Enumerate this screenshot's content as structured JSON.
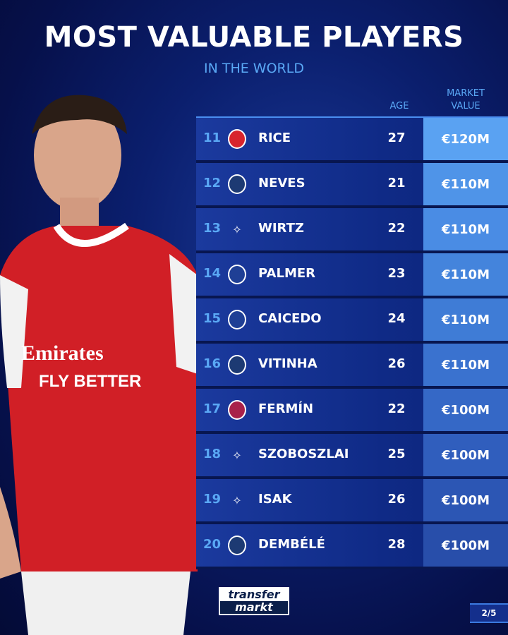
{
  "title": "MOST VALUABLE PLAYERS",
  "subtitle": "IN THE WORLD",
  "headers": {
    "age": "AGE",
    "market_value_1": "MARKET",
    "market_value_2": "VALUE"
  },
  "rows": [
    {
      "rank": "11",
      "club": "Arsenal",
      "name": "RICE",
      "age": "27",
      "value": "€120M",
      "value_color": "#5aa2f2"
    },
    {
      "rank": "12",
      "club": "PSG",
      "name": "NEVES",
      "age": "21",
      "value": "€110M",
      "value_color": "#4f94e8"
    },
    {
      "rank": "13",
      "club": "Liverpool",
      "name": "WIRTZ",
      "age": "22",
      "value": "€110M",
      "value_color": "#4a8ce4"
    },
    {
      "rank": "14",
      "club": "Chelsea",
      "name": "PALMER",
      "age": "23",
      "value": "€110M",
      "value_color": "#4484dc"
    },
    {
      "rank": "15",
      "club": "Chelsea",
      "name": "CAICEDO",
      "age": "24",
      "value": "€110M",
      "value_color": "#3f7cd6"
    },
    {
      "rank": "16",
      "club": "PSG",
      "name": "VITINHA",
      "age": "26",
      "value": "€110M",
      "value_color": "#3a72cf"
    },
    {
      "rank": "17",
      "club": "Barcelona",
      "name": "FERMÍN",
      "age": "22",
      "value": "€100M",
      "value_color": "#3568c6"
    },
    {
      "rank": "18",
      "club": "Liverpool",
      "name": "SZOBOSZLAI",
      "age": "25",
      "value": "€100M",
      "value_color": "#305ebd"
    },
    {
      "rank": "19",
      "club": "Liverpool",
      "name": "ISAK",
      "age": "26",
      "value": "€100M",
      "value_color": "#2c56b4"
    },
    {
      "rank": "20",
      "club": "PSG",
      "name": "DEMBÉLÉ",
      "age": "28",
      "value": "€100M",
      "value_color": "#284eaa"
    }
  ],
  "club_colors": {
    "Arsenal": "#d8242c",
    "PSG": "#1d3a73",
    "Liverpool": "transparent",
    "Chelsea": "#1f3f95",
    "Barcelona": "#a8214a"
  },
  "logo": {
    "line1": "transfer",
    "line2": "markt"
  },
  "page_indicator": "2/5"
}
